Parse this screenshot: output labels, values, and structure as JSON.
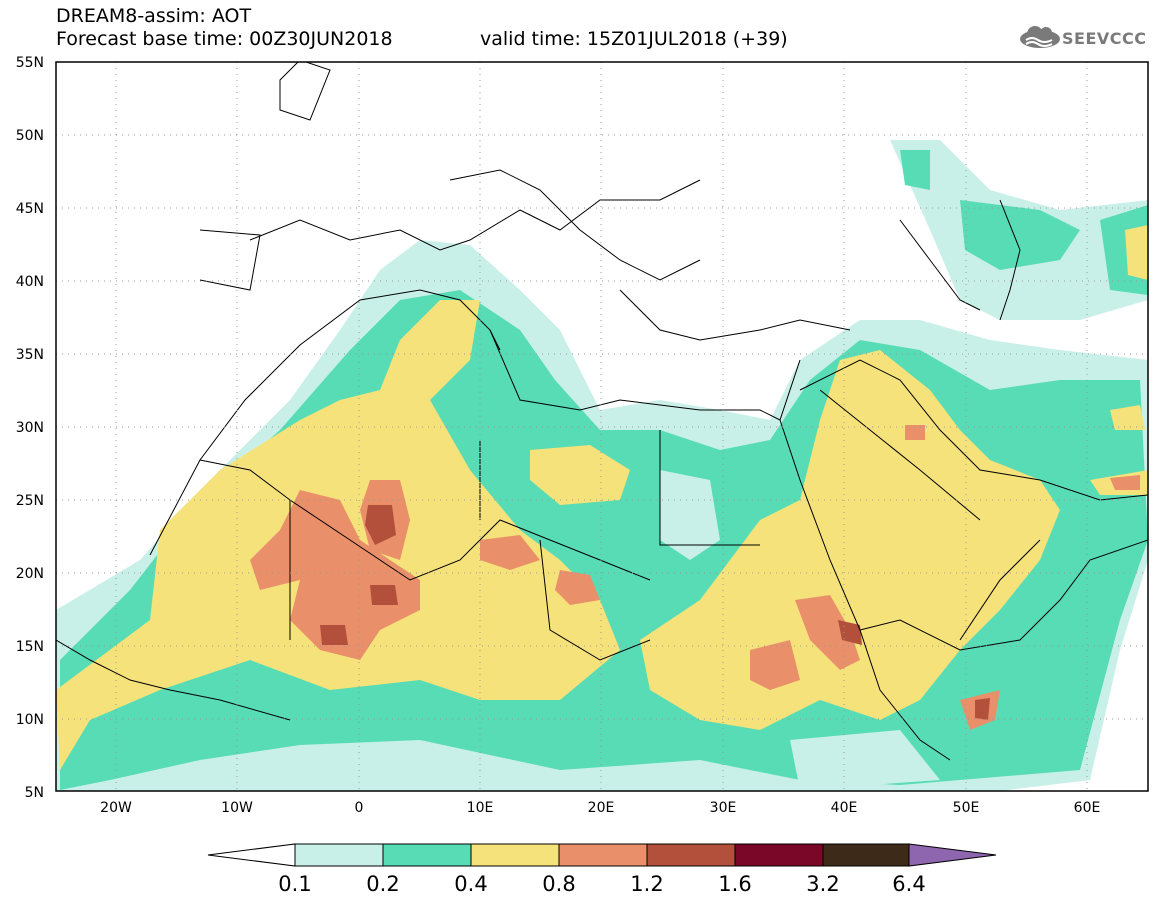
{
  "header": {
    "title": "DREAM8-assim: AOT",
    "base_time": "Forecast base time: 00Z30JUN2018",
    "valid_time": "valid time: 15Z01JUL2018 (+39)"
  },
  "logo": {
    "text": "SEEVCCC",
    "icon": "cloud-icon"
  },
  "axes": {
    "lat_labels": [
      "55N",
      "50N",
      "45N",
      "40N",
      "35N",
      "30N",
      "25N",
      "20N",
      "15N",
      "10N",
      "5N"
    ],
    "lon_labels": [
      "20W",
      "10W",
      "0",
      "10E",
      "20E",
      "30E",
      "40E",
      "50E",
      "60E"
    ],
    "lat_range": [
      5,
      55
    ],
    "lon_range": [
      -25,
      65
    ]
  },
  "colorbar": {
    "labels": [
      "0.1",
      "0.2",
      "0.4",
      "0.8",
      "1.2",
      "1.6",
      "3.2",
      "6.4"
    ],
    "colors": [
      "#ffffff",
      "#c9f0e8",
      "#57dcb5",
      "#f5e27a",
      "#e9906a",
      "#b3503c",
      "#7a0628",
      "#3e2a18",
      "#8e66b0"
    ]
  },
  "map": {
    "variable": "Aerosol Optical Thickness (AOT)",
    "grid": true
  }
}
